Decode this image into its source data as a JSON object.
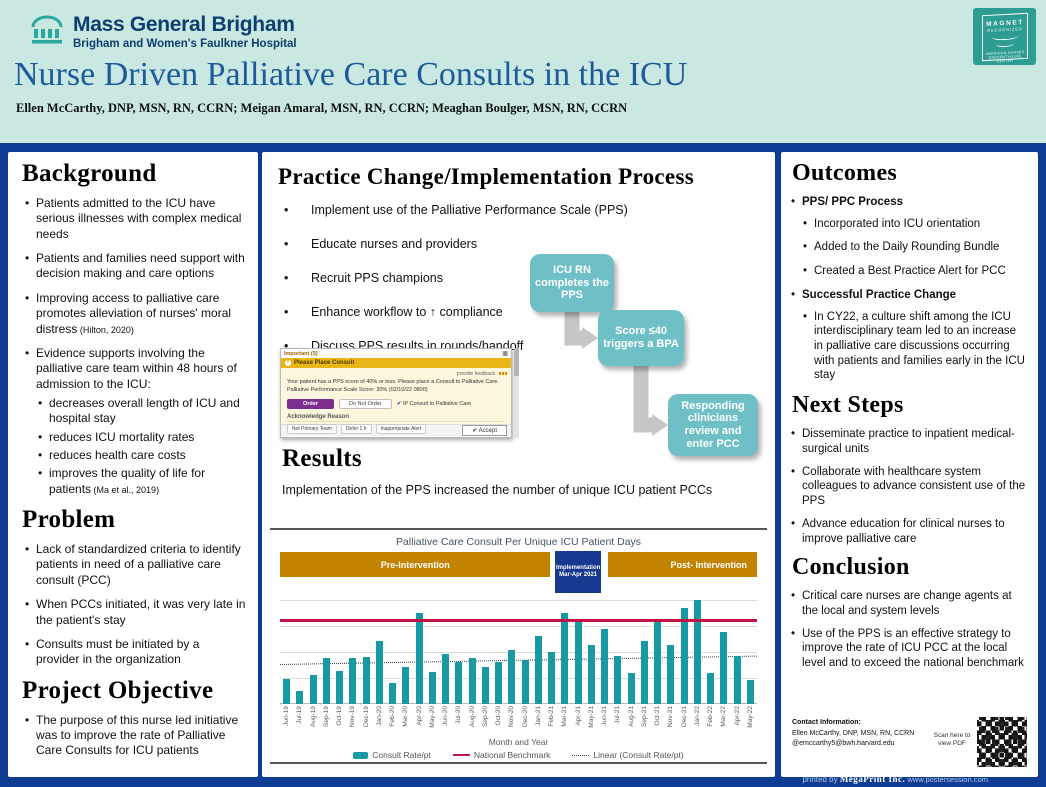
{
  "header": {
    "org_name": "Mass General Brigham",
    "org_sub": "Brigham and Women's Faulkner Hospital",
    "magnet": {
      "l1": "MAGNET",
      "l2": "RECOGNIZED",
      "l3": "AMERICAN NURSES",
      "l4": "CREDENTIALING CENTER"
    },
    "title": "Nurse Driven Palliative Care Consults in the ICU",
    "authors": "Ellen McCarthy, DNP, MSN, RN, CCRN; Meigan Amaral, MSN, RN, CCRN; Meaghan Boulger, MSN, RN, CCRN"
  },
  "icons": {
    "logo": "temple-columns-icon",
    "badge": "magnet-pennant-icon",
    "ehr_banner": "exclamation-circle-icon",
    "qr": "qr-code"
  },
  "left_column": {
    "sections": [
      {
        "heading": "Background",
        "items": [
          {
            "text": "Patients admitted to the ICU have serious illnesses with complex medical needs"
          },
          {
            "text": "Patients and families need support with decision making and care options"
          },
          {
            "text": "Improving access to palliative care promotes alleviation of nurses' moral distress",
            "cite": "(Hilton, 2020)"
          },
          {
            "text": "Evidence supports involving the palliative care team within 48 hours of admission to the ICU:",
            "sub": [
              {
                "text": "decreases overall length of ICU and hospital stay"
              },
              {
                "text": "reduces ICU mortality rates"
              },
              {
                "text": "reduces health care costs"
              },
              {
                "text": "improves the quality of life for patients",
                "cite": "(Ma et al., 2019)"
              }
            ]
          }
        ]
      },
      {
        "heading": "Problem",
        "items": [
          {
            "text": "Lack of standardized criteria to identify patients in need of a palliative care consult (PCC)"
          },
          {
            "text": "When PCCs initiated, it was very late in the patient's stay"
          },
          {
            "text": "Consults must be initiated by a provider in the organization"
          }
        ]
      },
      {
        "heading": "Project Objective",
        "items": [
          {
            "text": "The purpose of this nurse led initiative was to improve the rate of Palliative Care Consults for ICU patients"
          }
        ]
      }
    ]
  },
  "middle_column": {
    "process_heading": "Practice Change/Implementation Process",
    "process_bullets": [
      {
        "text": "Implement use of the Palliative Performance Scale (PPS)"
      },
      {
        "text": "Educate nurses and providers"
      },
      {
        "text": "Recruit PPS champions"
      },
      {
        "text": "Enhance workflow to ↑ compliance"
      },
      {
        "text": "Discuss PPS results in rounds/handoff"
      }
    ],
    "flowchart": [
      {
        "label": "ICU RN completes the PPS"
      },
      {
        "label": "Score ≤40 triggers a BPA"
      },
      {
        "label": "Responding clinicians review and enter PCC"
      }
    ],
    "ehr_alert": {
      "window_title": "Important (5)",
      "banner_label": "Please Place Consult",
      "feedback_link": "provide feedback",
      "body_line1": "Your patient has a PPS score of 40% or less. Please place a Consult to Palliative Care.",
      "body_line2": "Palliative Performance Scale Score: 30% (02/10/22 0800)",
      "order_button": "Order",
      "do_not_order_button": "Do Not Order",
      "consult_check": "IP Consult to Palliative Care",
      "acknowledge_label": "Acknowledge Reason",
      "ack_options": [
        "Not Primary Team",
        "Defer 1 h",
        "Inappropriate Alert"
      ],
      "accept_button": "✔ Accept"
    },
    "results_heading": "Results",
    "results_text": "Implementation of the PPS increased the number of unique ICU patient  PCCs"
  },
  "chart_data": {
    "type": "bar",
    "title": "Palliative Care Consult Per Unique ICU Patient Days",
    "xlabel": "Month and Year",
    "ylabel": "",
    "ylim": [
      0,
      1.05
    ],
    "grid": true,
    "categories": [
      "Jun-19",
      "Jul-19",
      "Aug-19",
      "Sep-19",
      "Oct-19",
      "Nov-19",
      "Dec-19",
      "Jan-20",
      "Feb-20",
      "Mar-20",
      "Apr-20",
      "May-20",
      "Jun-20",
      "Jul-20",
      "Aug-20",
      "Sep-20",
      "Oct-20",
      "Nov-20",
      "Dec-20",
      "Jan-21",
      "Feb-21",
      "Mar-21",
      "Apr-21",
      "May-21",
      "Jun-21",
      "Jul-21",
      "Aug-21",
      "Sep-21",
      "Oct-21",
      "Nov-21",
      "Dec-21",
      "Jan-22",
      "Feb-22",
      "Mar-22",
      "Apr-22",
      "May-22"
    ],
    "series": [
      {
        "name": "Consult Rate/pt",
        "values": [
          0.24,
          0.13,
          0.28,
          0.44,
          0.32,
          0.44,
          0.45,
          0.61,
          0.2,
          0.36,
          0.88,
          0.31,
          0.48,
          0.4,
          0.44,
          0.36,
          0.4,
          0.52,
          0.42,
          0.65,
          0.5,
          0.88,
          0.8,
          0.57,
          0.72,
          0.46,
          0.3,
          0.61,
          0.8,
          0.57,
          0.92,
          1.0,
          0.3,
          0.69,
          0.46,
          0.23
        ]
      }
    ],
    "benchmark": {
      "name": "National Benchmark",
      "value": 0.8
    },
    "trendline": {
      "name": "Linear (Consult Rate/pt)",
      "start": 0.38,
      "end": 0.46
    },
    "bands": [
      {
        "label": "Pre-Intervention",
        "sublabel": "",
        "left_pct": 0,
        "width_pct": 56.7,
        "kind": "phase",
        "align": "center"
      },
      {
        "label": "Implementation",
        "sublabel": "Mar-Apr 2021",
        "left_pct": 57.4,
        "width_pct": 10.2,
        "kind": "impl",
        "align": "center"
      },
      {
        "label": "Post- Intervention",
        "sublabel": "",
        "left_pct": 68.7,
        "width_pct": 31.3,
        "kind": "phase",
        "align": "right"
      }
    ],
    "legend": [
      {
        "label": "Consult Rate/pt",
        "swatch": "bar"
      },
      {
        "label": "National Benchmark",
        "swatch": "red-line"
      },
      {
        "label": "Linear (Consult Rate/pt)",
        "swatch": "dotted-line"
      }
    ],
    "colors": {
      "bar": "#189aa2",
      "benchmark": "#c41346",
      "phase_band": "#c28300",
      "implementation_band": "#16388e"
    },
    "legend_position": "bottom"
  },
  "right_column": {
    "sections": [
      {
        "heading": "Outcomes",
        "items": [
          {
            "text": "PPS/ PPC Process",
            "bold": true,
            "sub": [
              {
                "text": "Incorporated into ICU orientation"
              },
              {
                "text": "Added to the Daily Rounding Bundle"
              },
              {
                "text": "Created a Best Practice Alert for PCC"
              }
            ]
          },
          {
            "text": "Successful Practice Change",
            "bold": true,
            "sub": [
              {
                "text": "In CY22, a culture shift among the ICU interdisciplinary team led to an increase in palliative care discussions occurring with patients and families early in the ICU stay"
              }
            ]
          }
        ]
      },
      {
        "heading": "Next Steps",
        "items": [
          {
            "text": "Disseminate practice to inpatient medical-surgical units"
          },
          {
            "text": "Collaborate with healthcare system colleagues to advance consistent use of the PPS"
          },
          {
            "text": "Advance education for clinical nurses to improve palliative care"
          }
        ]
      },
      {
        "heading": "Conclusion",
        "items": [
          {
            "text": "Critical care nurses are change agents at the local and system levels"
          },
          {
            "text": "Use of the PPS is an effective strategy to improve the rate of ICU PCC at the local level and to exceed the national benchmark"
          }
        ]
      }
    ],
    "contact_label": "Contact Information:",
    "contact_lines": [
      "Ellen McCarthy, DNP, MSN, RN, CCRN",
      "@emccarthy5@bwh.harvard.edu"
    ],
    "scan_text": "Scan here to view PDF"
  },
  "footer": {
    "printed_by": "printed by",
    "printer": "MegaPrint Inc.",
    "site": "www.postersession.com"
  }
}
